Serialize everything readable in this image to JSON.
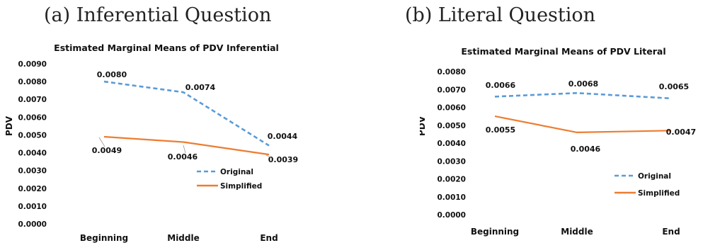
{
  "panels": [
    {
      "label": "(a)  Inferential Question",
      "chart": {
        "title": "Estimated Marginal Means of PDV Inferential",
        "ylabel": "PDV",
        "yticks": [
          "0.0000",
          "0.0010",
          "0.0020",
          "0.0030",
          "0.0040",
          "0.0050",
          "0.0060",
          "0.0070",
          "0.0080",
          "0.0090"
        ]
      }
    },
    {
      "label": "(b)  Literal Question",
      "chart": {
        "title": "Estimated Marginal Means of PDV Literal",
        "ylabel": "PDV",
        "yticks": [
          "0.0000",
          "0.0010",
          "0.0020",
          "0.0030",
          "0.0040",
          "0.0050",
          "0.0060",
          "0.0070",
          "0.0080"
        ]
      }
    }
  ],
  "chart_data": [
    {
      "type": "line",
      "title": "Estimated Marginal Means of PDV Inferential",
      "xlabel": "",
      "ylabel": "PDV",
      "categories": [
        "Beginning",
        "Middle",
        "End"
      ],
      "ylim": [
        0,
        0.009
      ],
      "grid": false,
      "legend": "bottom-right",
      "series": [
        {
          "name": "Original",
          "values": [
            0.008,
            0.0074,
            0.0044
          ],
          "labels": [
            "0.0080",
            "0.0074",
            "0.0044"
          ],
          "color": "#5B9BD5",
          "style": "dashed"
        },
        {
          "name": "Simplified",
          "values": [
            0.0049,
            0.0046,
            0.0039
          ],
          "labels": [
            "0.0049",
            "0.0046",
            "0.0039"
          ],
          "color": "#ED7D31",
          "style": "solid"
        }
      ]
    },
    {
      "type": "line",
      "title": "Estimated Marginal Means of PDV Literal",
      "xlabel": "",
      "ylabel": "PDV",
      "categories": [
        "Beginning",
        "Middle",
        "End"
      ],
      "ylim": [
        0,
        0.008
      ],
      "grid": false,
      "legend": "bottom-right",
      "series": [
        {
          "name": "Original",
          "values": [
            0.0066,
            0.0068,
            0.0065
          ],
          "labels": [
            "0.0066",
            "0.0068",
            "0.0065"
          ],
          "color": "#5B9BD5",
          "style": "dashed"
        },
        {
          "name": "Simplified",
          "values": [
            0.0055,
            0.0046,
            0.0047
          ],
          "labels": [
            "0.0055",
            "0.0046",
            "0.0047"
          ],
          "color": "#ED7D31",
          "style": "solid"
        }
      ]
    }
  ]
}
